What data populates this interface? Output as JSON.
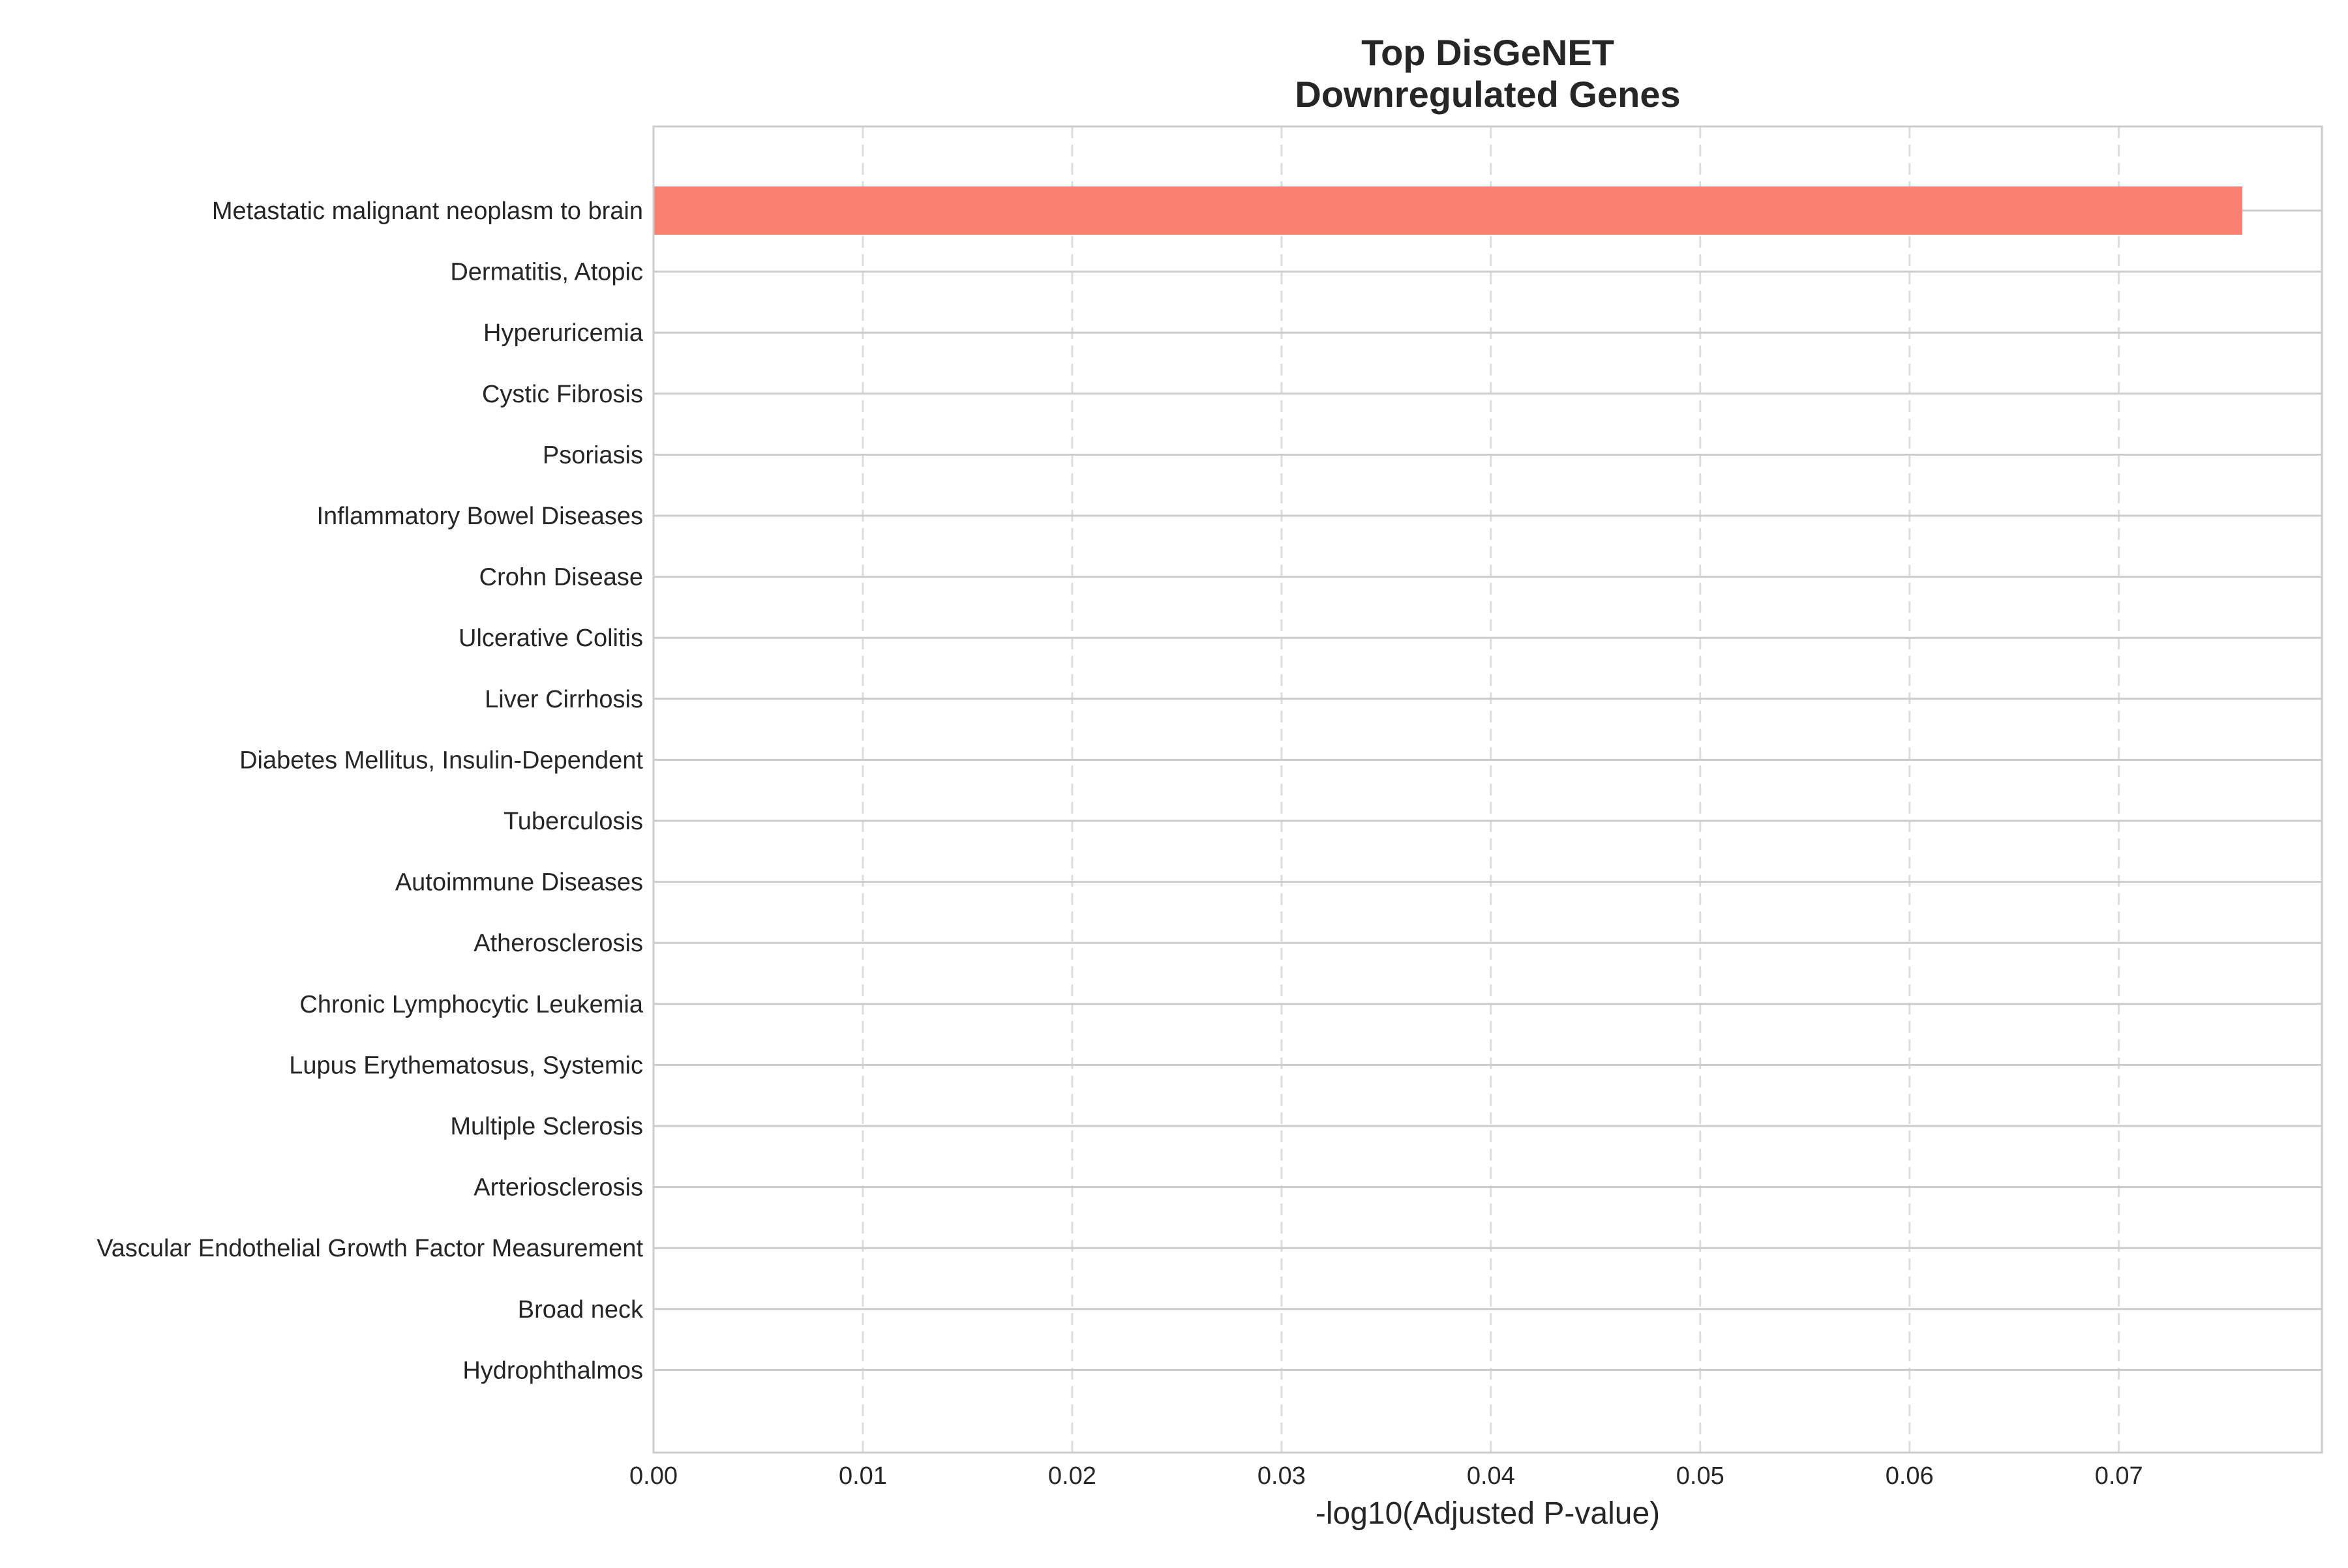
{
  "chart_data": {
    "type": "bar",
    "orientation": "horizontal",
    "title_lines": [
      "Top DisGeNET",
      "Downregulated Genes"
    ],
    "xlabel": "-log10(Adjusted P-value)",
    "ylabel": "",
    "xlim": [
      0,
      0.0797
    ],
    "xticks": [
      0.0,
      0.01,
      0.02,
      0.03,
      0.04,
      0.05,
      0.06,
      0.07
    ],
    "xtick_labels": [
      "0.00",
      "0.01",
      "0.02",
      "0.03",
      "0.04",
      "0.05",
      "0.06",
      "0.07"
    ],
    "categories": [
      "Metastatic malignant neoplasm to brain",
      "Dermatitis, Atopic",
      "Hyperuricemia",
      "Cystic Fibrosis",
      "Psoriasis",
      "Inflammatory Bowel Diseases",
      "Crohn Disease",
      "Ulcerative Colitis",
      "Liver Cirrhosis",
      "Diabetes Mellitus, Insulin-Dependent",
      "Tuberculosis",
      "Autoimmune Diseases",
      "Atherosclerosis",
      "Chronic Lymphocytic Leukemia",
      "Lupus Erythematosus, Systemic",
      "Multiple Sclerosis",
      "Arteriosclerosis",
      "Vascular Endothelial Growth Factor Measurement",
      "Broad neck",
      "Hydrophthalmos"
    ],
    "values": [
      0.0759,
      0,
      0,
      0,
      0,
      0,
      0,
      0,
      0,
      0,
      0,
      0,
      0,
      0,
      0,
      0,
      0,
      0,
      0,
      0
    ],
    "bar_color": "#fa8072",
    "grid": true,
    "colors": {
      "grid": "#dddddd",
      "spine": "#cccccc",
      "row_line": "#cccccc",
      "text": "#262626"
    }
  }
}
